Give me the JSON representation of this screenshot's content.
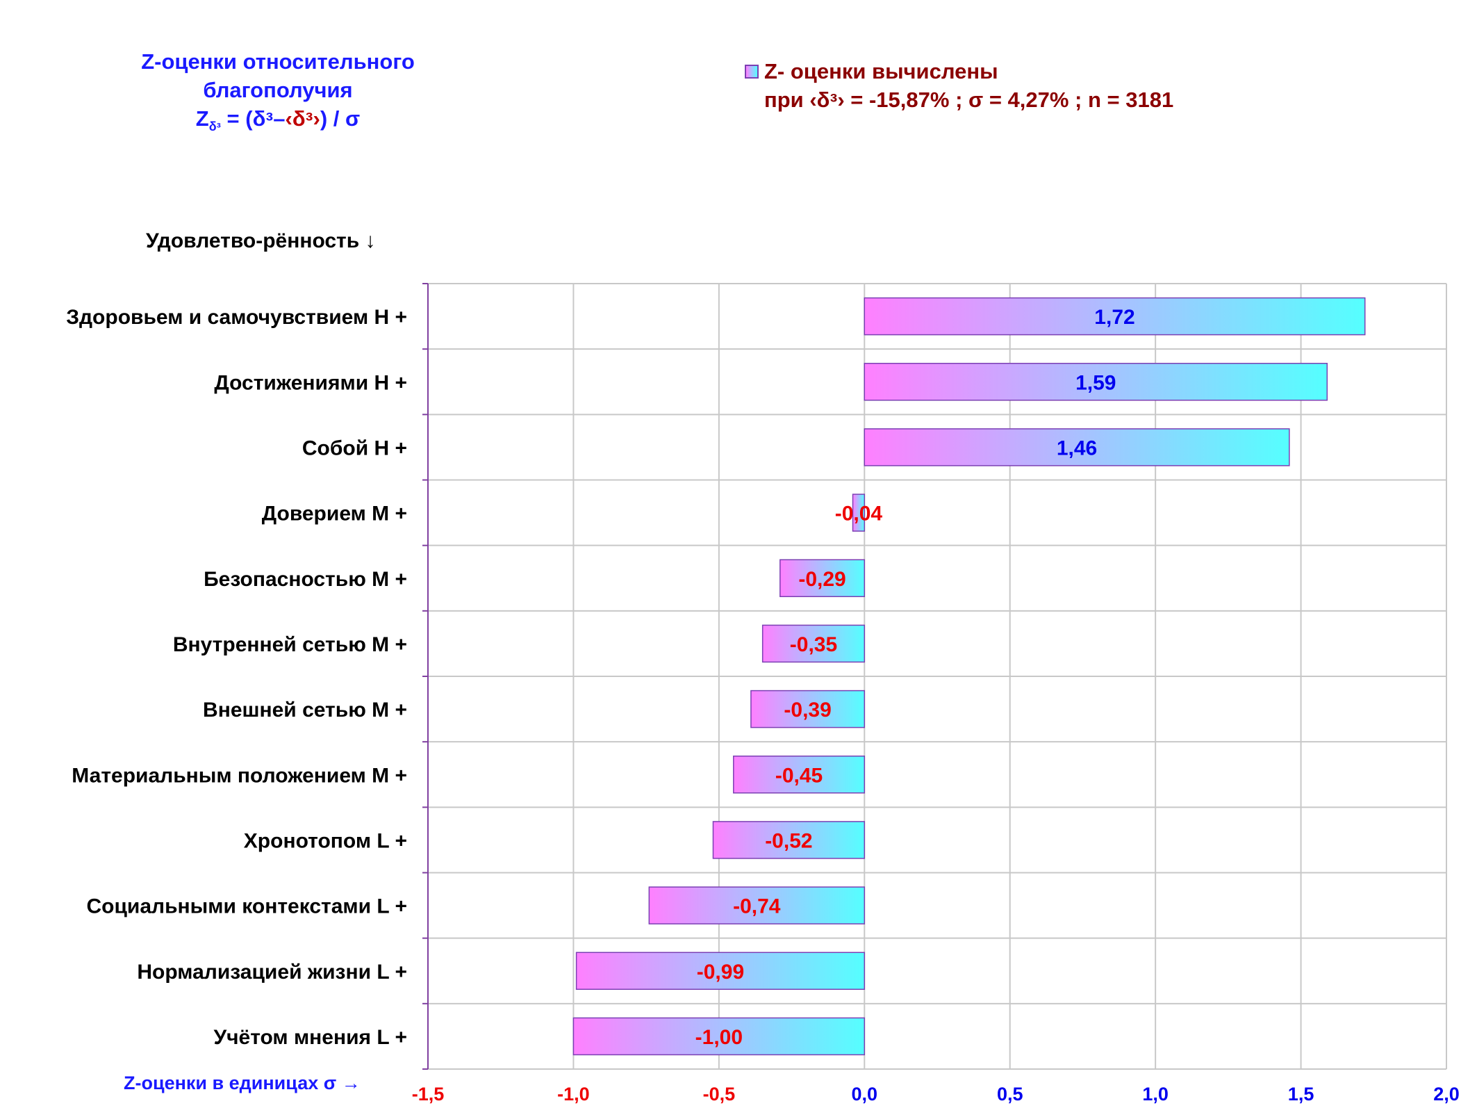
{
  "title": {
    "line1": "Z-оценки  относительного",
    "line2": "благополучия",
    "formula_z": "Z",
    "formula_sub": "δᶟ",
    "formula_eq": " = (δᶟ–",
    "formula_mean": "‹δᶟ›",
    "formula_tail": ") / σ"
  },
  "legend": {
    "label": "Z- оценки вычислены",
    "params": "при ‹δᶟ› = -15,87% ; σ = 4,27% ; n = 3181"
  },
  "y_header": "Удовлетво-рённость ↓",
  "x_footer": "Z-оценки в единицах σ →",
  "colors": {
    "positive_label": "#0000ee",
    "negative_label": "#ee0000",
    "bar_gradient_start": "#ff80ff",
    "bar_gradient_end": "#55ffff",
    "bar_border": "#7b3fb3",
    "grid": "#c8c8c8",
    "y_axis": "#8040a0"
  },
  "chart_data": {
    "type": "bar",
    "orientation": "horizontal",
    "categories": [
      "Здоровьем и самочувствием  H +",
      "Достижениями  H +",
      "Собой  H +",
      "Доверием  M +",
      "Безопасностью  M +",
      "Внутренней сетью  M +",
      "Внешней сетью  M +",
      "Материальным положением  M +",
      "Хронотопом  L +",
      "Социальными контекстами  L +",
      "Нормализацией жизни  L +",
      "Учётом мнения  L +"
    ],
    "values": [
      1.72,
      1.59,
      1.46,
      -0.04,
      -0.29,
      -0.35,
      -0.39,
      -0.45,
      -0.52,
      -0.74,
      -0.99,
      -1.0
    ],
    "value_labels": [
      "1,72",
      "1,59",
      "1,46",
      "-0,04",
      "-0,29",
      "-0,35",
      "-0,39",
      "-0,45",
      "-0,52",
      "-0,74",
      "-0,99",
      "-1,00"
    ],
    "xlim": [
      -1.5,
      2.0
    ],
    "xticks": [
      -1.5,
      -1.0,
      -0.5,
      0.0,
      0.5,
      1.0,
      1.5,
      2.0
    ],
    "xtick_labels": [
      "-1,5",
      "-1,0",
      "-0,5",
      "0,0",
      "0,5",
      "1,0",
      "1,5",
      "2,0"
    ],
    "grid": true,
    "legend_position": "top-right"
  }
}
